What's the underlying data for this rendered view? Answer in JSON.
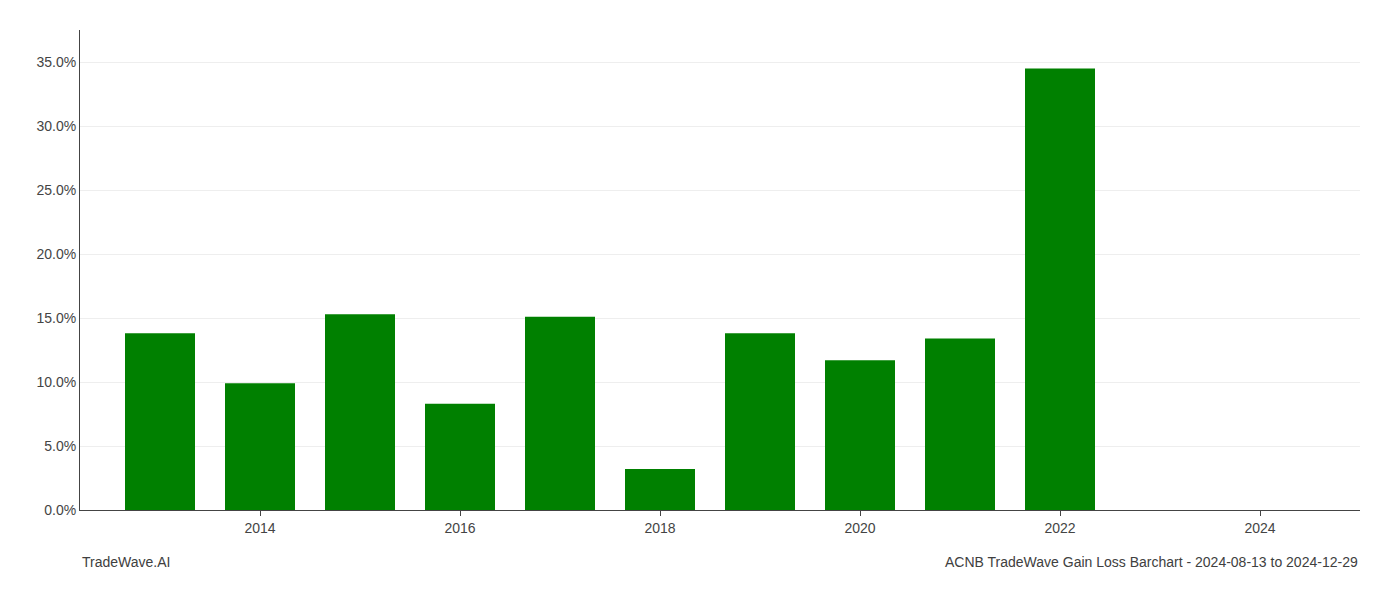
{
  "chart_data": {
    "type": "bar",
    "title": "ACNB TradeWave Gain Loss Barchart - 2024-08-13 to 2024-12-29",
    "annotations": [
      "TradeWave.AI"
    ],
    "x": [
      2013,
      2014,
      2015,
      2016,
      2017,
      2018,
      2019,
      2020,
      2021,
      2022
    ],
    "values": [
      0.138,
      0.099,
      0.153,
      0.083,
      0.151,
      0.032,
      0.138,
      0.117,
      0.134,
      0.345
    ],
    "color": "#008000",
    "xlim": [
      2012.2,
      2025.0
    ],
    "xticks": [
      2014,
      2016,
      2018,
      2020,
      2022,
      2024
    ],
    "ylim": [
      0,
      0.375
    ],
    "yticks": [
      {
        "value": 0.0,
        "label": "0.0%"
      },
      {
        "value": 0.05,
        "label": "5.0%"
      },
      {
        "value": 0.1,
        "label": "10.0%"
      },
      {
        "value": 0.15,
        "label": "15.0%"
      },
      {
        "value": 0.2,
        "label": "20.0%"
      },
      {
        "value": 0.25,
        "label": "25.0%"
      },
      {
        "value": 0.3,
        "label": "30.0%"
      },
      {
        "value": 0.35,
        "label": "35.0%"
      }
    ],
    "grid": true
  }
}
